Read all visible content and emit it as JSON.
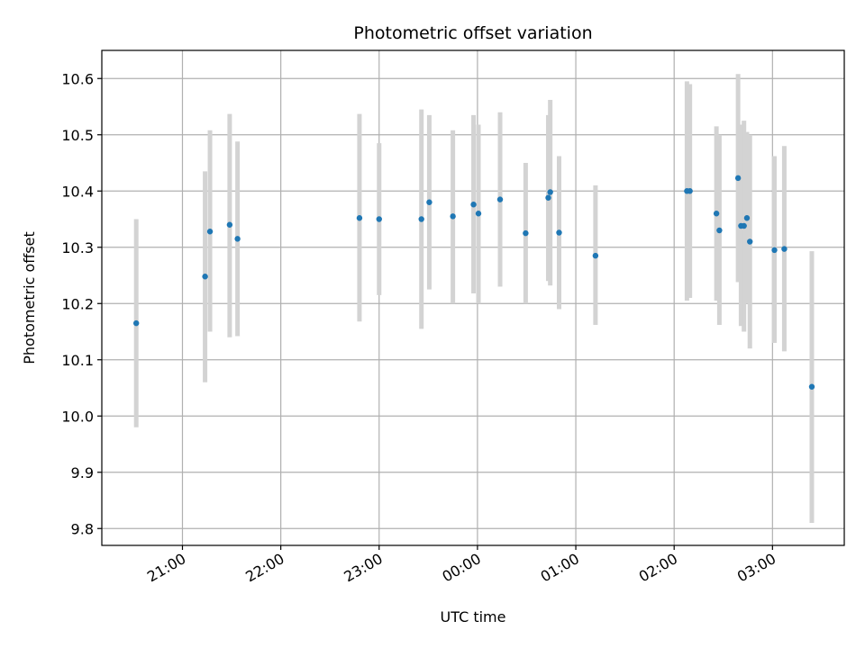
{
  "chart_data": {
    "type": "scatter",
    "title": "Photometric offset variation",
    "xlabel": "UTC time",
    "ylabel": "Photometric offset",
    "x_unit": "hours",
    "x_tick_labels": [
      "21:00",
      "22:00",
      "23:00",
      "00:00",
      "01:00",
      "02:00",
      "03:00"
    ],
    "x_tick_hours": [
      21,
      22,
      23,
      24,
      25,
      26,
      27
    ],
    "xlim": [
      20.18,
      27.73
    ],
    "ylim": [
      9.77,
      10.65
    ],
    "y_ticks": [
      9.8,
      9.9,
      10.0,
      10.1,
      10.2,
      10.3,
      10.4,
      10.5,
      10.6
    ],
    "grid": true,
    "colors": {
      "point": "#1f77b4",
      "errorbar": "#d3d3d3",
      "grid": "#b0b0b0"
    },
    "points": [
      {
        "x": 20.53,
        "y": 10.165,
        "lo": 9.98,
        "hi": 10.35
      },
      {
        "x": 21.23,
        "y": 10.248,
        "lo": 10.06,
        "hi": 10.435
      },
      {
        "x": 21.28,
        "y": 10.328,
        "lo": 10.15,
        "hi": 10.508
      },
      {
        "x": 21.48,
        "y": 10.34,
        "lo": 10.14,
        "hi": 10.537
      },
      {
        "x": 21.56,
        "y": 10.315,
        "lo": 10.142,
        "hi": 10.488
      },
      {
        "x": 22.8,
        "y": 10.352,
        "lo": 10.168,
        "hi": 10.537
      },
      {
        "x": 23.0,
        "y": 10.35,
        "lo": 10.215,
        "hi": 10.485
      },
      {
        "x": 23.43,
        "y": 10.35,
        "lo": 10.155,
        "hi": 10.545
      },
      {
        "x": 23.51,
        "y": 10.38,
        "lo": 10.225,
        "hi": 10.535
      },
      {
        "x": 23.75,
        "y": 10.355,
        "lo": 10.2,
        "hi": 10.508
      },
      {
        "x": 23.96,
        "y": 10.376,
        "lo": 10.218,
        "hi": 10.535
      },
      {
        "x": 24.01,
        "y": 10.36,
        "lo": 10.2,
        "hi": 10.518
      },
      {
        "x": 24.23,
        "y": 10.385,
        "lo": 10.23,
        "hi": 10.54
      },
      {
        "x": 24.49,
        "y": 10.325,
        "lo": 10.2,
        "hi": 10.45
      },
      {
        "x": 24.72,
        "y": 10.388,
        "lo": 10.24,
        "hi": 10.535
      },
      {
        "x": 24.74,
        "y": 10.398,
        "lo": 10.232,
        "hi": 10.562
      },
      {
        "x": 24.83,
        "y": 10.326,
        "lo": 10.19,
        "hi": 10.462
      },
      {
        "x": 25.2,
        "y": 10.285,
        "lo": 10.162,
        "hi": 10.41
      },
      {
        "x": 26.13,
        "y": 10.4,
        "lo": 10.205,
        "hi": 10.595
      },
      {
        "x": 26.16,
        "y": 10.4,
        "lo": 10.21,
        "hi": 10.59
      },
      {
        "x": 26.43,
        "y": 10.36,
        "lo": 10.205,
        "hi": 10.515
      },
      {
        "x": 26.46,
        "y": 10.33,
        "lo": 10.162,
        "hi": 10.5
      },
      {
        "x": 26.65,
        "y": 10.423,
        "lo": 10.238,
        "hi": 10.608
      },
      {
        "x": 26.68,
        "y": 10.338,
        "lo": 10.16,
        "hi": 10.518
      },
      {
        "x": 26.71,
        "y": 10.338,
        "lo": 10.15,
        "hi": 10.525
      },
      {
        "x": 26.74,
        "y": 10.352,
        "lo": 10.2,
        "hi": 10.505
      },
      {
        "x": 26.77,
        "y": 10.31,
        "lo": 10.12,
        "hi": 10.5
      },
      {
        "x": 27.02,
        "y": 10.295,
        "lo": 10.13,
        "hi": 10.462
      },
      {
        "x": 27.12,
        "y": 10.297,
        "lo": 10.115,
        "hi": 10.48
      },
      {
        "x": 27.4,
        "y": 10.052,
        "lo": 9.81,
        "hi": 10.293
      }
    ]
  }
}
